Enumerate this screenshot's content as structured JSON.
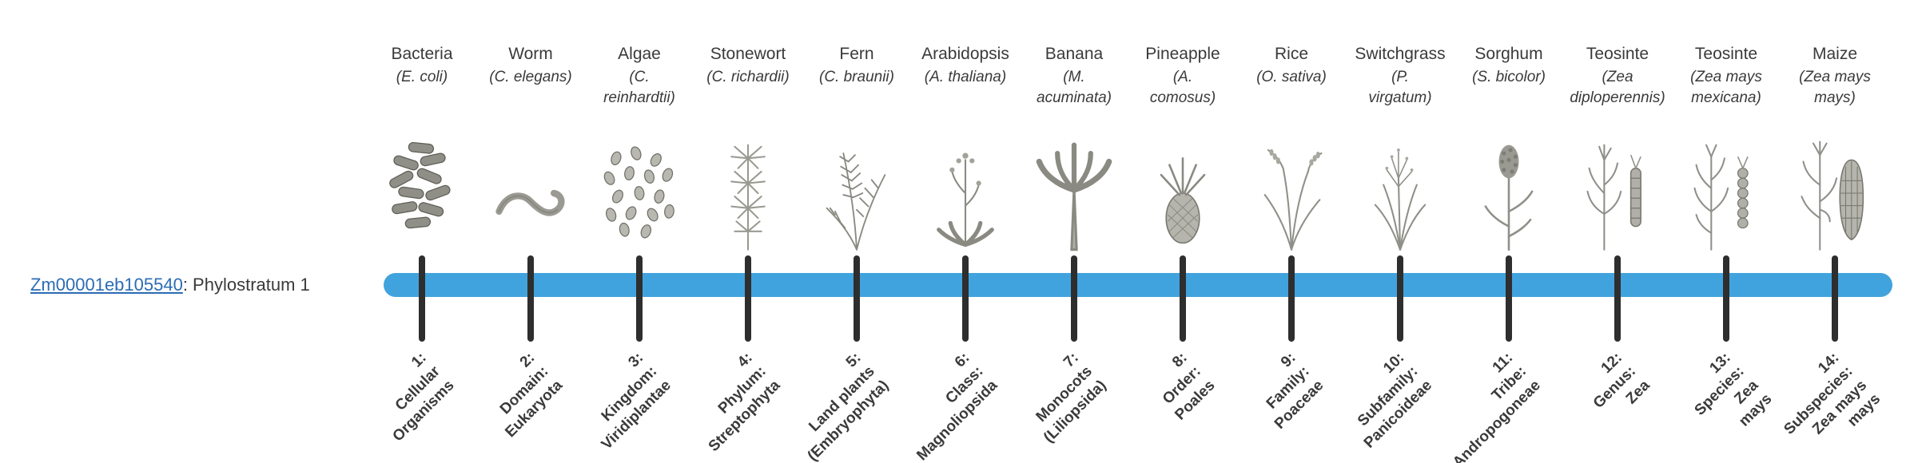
{
  "gene": {
    "id": "Zm00001eb105540",
    "suffix": ": Phylostratum 1"
  },
  "colors": {
    "bar": "#41a3dd",
    "tick": "#2e2e2e",
    "link": "#2b6cb5",
    "text": "#3a3a3a"
  },
  "columns": [
    {
      "name": "Bacteria",
      "sci": "(E. coli)",
      "icon": "icon-bacteria",
      "icon_name": "bacteria-illustration",
      "stratum_label": "1:\nCellular\nOrganisms"
    },
    {
      "name": "Worm",
      "sci": "(C. elegans)",
      "icon": "icon-worm",
      "icon_name": "worm-illustration",
      "stratum_label": "2:\nDomain:\nEukaryota"
    },
    {
      "name": "Algae",
      "sci": "(C.\nreinhardtii)",
      "icon": "icon-algae",
      "icon_name": "algae-illustration",
      "stratum_label": "3:\nKingdom:\nViridiplantae"
    },
    {
      "name": "Stonewort",
      "sci": "(C. richardii)",
      "icon": "icon-stonewort",
      "icon_name": "stonewort-illustration",
      "stratum_label": "4:\nPhylum:\nStreptophyta"
    },
    {
      "name": "Fern",
      "sci": "(C. braunii)",
      "icon": "icon-fern",
      "icon_name": "fern-illustration",
      "stratum_label": "5:\nLand plants\n(Embryophyta)"
    },
    {
      "name": "Arabidopsis",
      "sci": "(A. thaliana)",
      "icon": "icon-arabidopsis",
      "icon_name": "arabidopsis-illustration",
      "stratum_label": "6:\nClass:\nMagnoliopsida"
    },
    {
      "name": "Banana",
      "sci": "(M.\nacuminata)",
      "icon": "icon-banana",
      "icon_name": "banana-illustration",
      "stratum_label": "7:\nMonocots\n(Liliopsida)"
    },
    {
      "name": "Pineapple",
      "sci": "(A.\ncomosus)",
      "icon": "icon-pineapple",
      "icon_name": "pineapple-illustration",
      "stratum_label": "8:\nOrder:\nPoales"
    },
    {
      "name": "Rice",
      "sci": "(O. sativa)",
      "icon": "icon-rice",
      "icon_name": "rice-illustration",
      "stratum_label": "9:\nFamily:\nPoaceae"
    },
    {
      "name": "Switchgrass",
      "sci": "(P.\nvirgatum)",
      "icon": "icon-switchgrass",
      "icon_name": "switchgrass-illustration",
      "stratum_label": "10:\nSubfamily:\nPanicoideae"
    },
    {
      "name": "Sorghum",
      "sci": "(S. bicolor)",
      "icon": "icon-sorghum",
      "icon_name": "sorghum-illustration",
      "stratum_label": "11:\nTribe:\nAndropogoneae"
    },
    {
      "name": "Teosinte",
      "sci": "(Zea\ndiploperennis)",
      "icon": "icon-teosinte",
      "icon_name": "teosinte-diploperennis-illustration",
      "stratum_label": "12:\nGenus:\nZea"
    },
    {
      "name": "Teosinte",
      "sci": "(Zea mays\nmexicana)",
      "icon": "icon-teosinte2",
      "icon_name": "teosinte-mexicana-illustration",
      "stratum_label": "13:\nSpecies:\nZea\nmays"
    },
    {
      "name": "Maize",
      "sci": "(Zea mays\nmays)",
      "icon": "icon-maize",
      "icon_name": "maize-illustration",
      "stratum_label": "14:\nSubspecies:\nZea mays\nmays"
    }
  ]
}
